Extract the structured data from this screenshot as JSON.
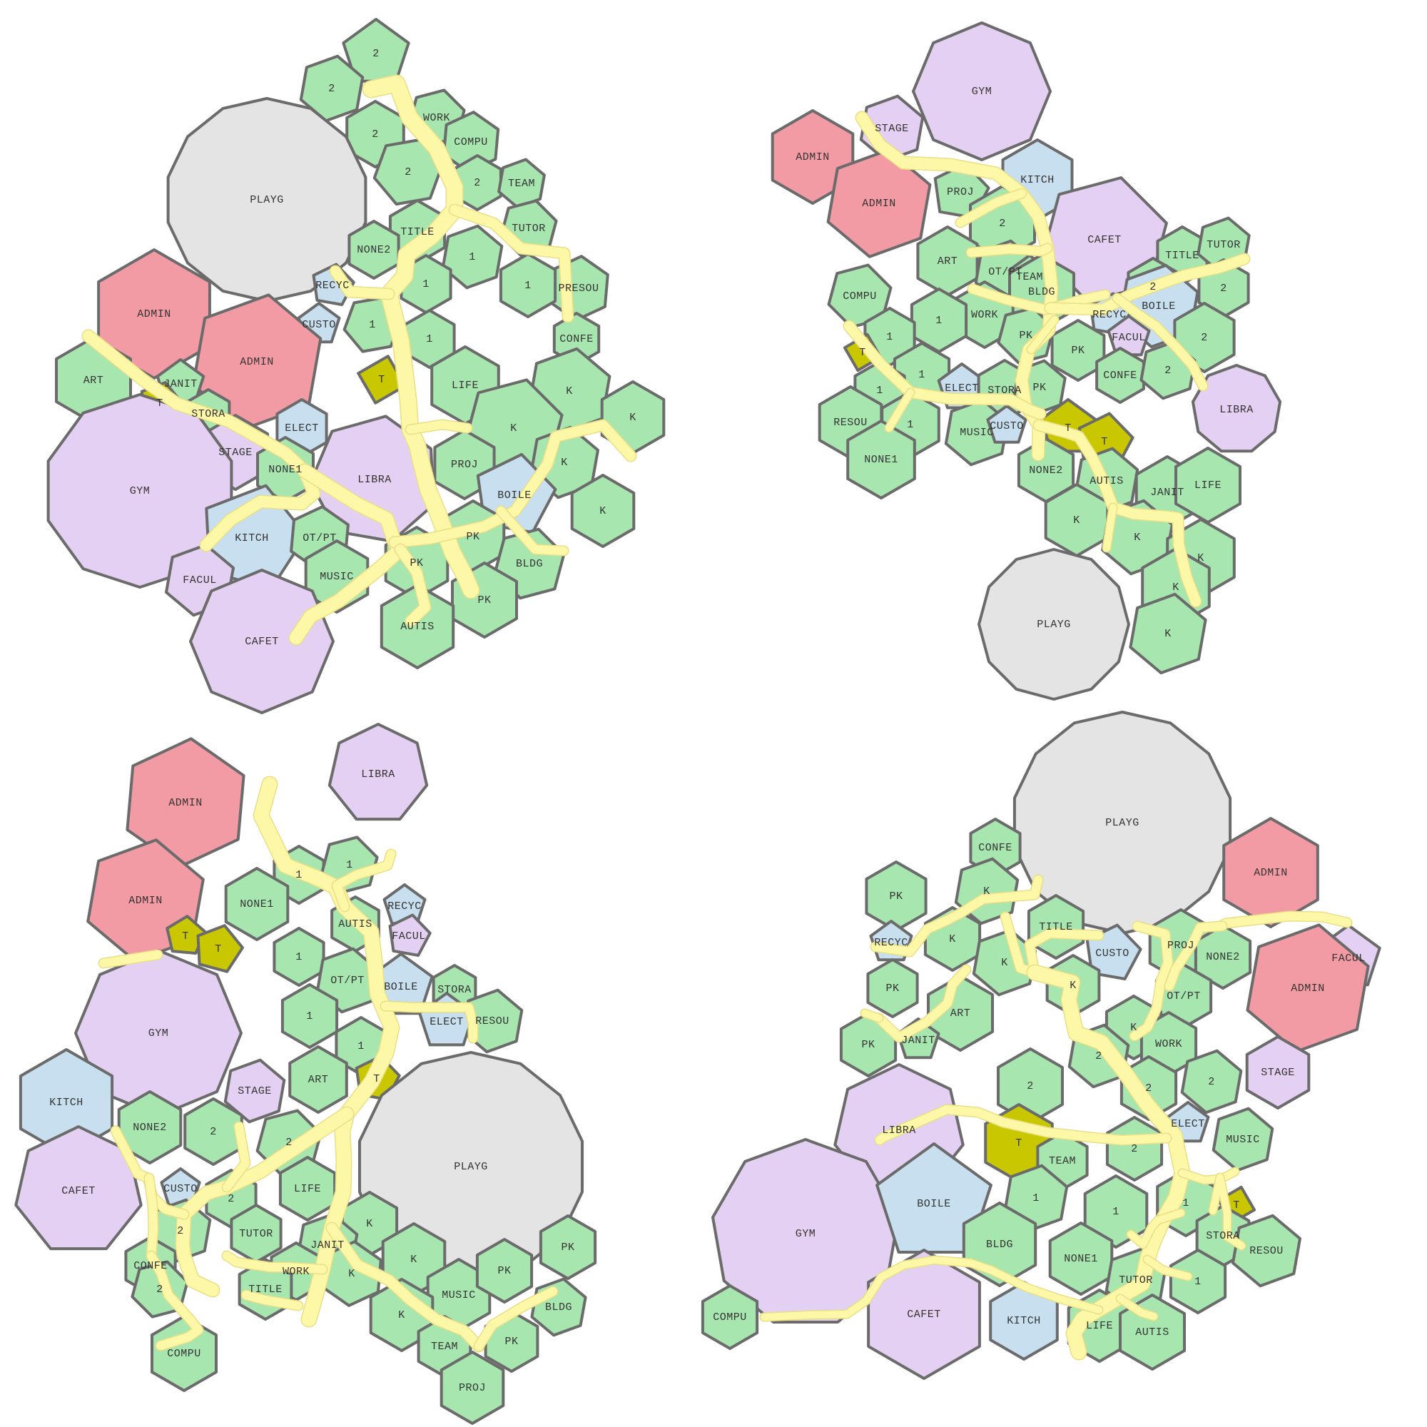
{
  "colors": {
    "classroom": "#a8e6b0",
    "admin": "#f39ba4",
    "large": "#e4d0f2",
    "service": "#c7dfee",
    "toilet": "#c9c800",
    "playground": "#e4e4e4",
    "corridor": "#fdf7a8",
    "wall": "#6b6b6b"
  },
  "plans": [
    {
      "rooms": [
        {
          "label": "2",
          "kind": "classroom"
        },
        {
          "label": "2",
          "kind": "classroom"
        },
        {
          "label": "2",
          "kind": "classroom"
        },
        {
          "label": "WORK",
          "kind": "classroom"
        },
        {
          "label": "COMPU",
          "kind": "classroom"
        },
        {
          "label": "2",
          "kind": "classroom"
        },
        {
          "label": "PLAYG",
          "kind": "playground"
        },
        {
          "label": "2",
          "kind": "classroom"
        },
        {
          "label": "TEAM",
          "kind": "classroom"
        },
        {
          "label": "TITLE",
          "kind": "classroom"
        },
        {
          "label": "TUTOR",
          "kind": "classroom"
        },
        {
          "label": "NONE2",
          "kind": "classroom"
        },
        {
          "label": "1",
          "kind": "classroom"
        },
        {
          "label": "1",
          "kind": "classroom"
        },
        {
          "label": "PRESOU",
          "kind": "classroom"
        },
        {
          "label": "RECYC",
          "kind": "service"
        },
        {
          "label": "ADMIN",
          "kind": "admin"
        },
        {
          "label": "1",
          "kind": "classroom"
        },
        {
          "label": "CUSTO",
          "kind": "service"
        },
        {
          "label": "1",
          "kind": "classroom"
        },
        {
          "label": "CONFE",
          "kind": "classroom"
        },
        {
          "label": "ADMIN",
          "kind": "admin"
        },
        {
          "label": "1",
          "kind": "classroom"
        },
        {
          "label": "ART",
          "kind": "classroom"
        },
        {
          "label": "JANIT",
          "kind": "classroom"
        },
        {
          "label": "T",
          "kind": "toilet"
        },
        {
          "label": "T",
          "kind": "toilet"
        },
        {
          "label": "LIFE",
          "kind": "classroom"
        },
        {
          "label": "K",
          "kind": "classroom"
        },
        {
          "label": "STORA",
          "kind": "classroom"
        },
        {
          "label": "ELECT",
          "kind": "service"
        },
        {
          "label": "K",
          "kind": "classroom"
        },
        {
          "label": "K",
          "kind": "classroom"
        },
        {
          "label": "STAGE",
          "kind": "large"
        },
        {
          "label": "GYM",
          "kind": "large"
        },
        {
          "label": "NONE1",
          "kind": "classroom"
        },
        {
          "label": "LIBRA",
          "kind": "large"
        },
        {
          "label": "PROJ",
          "kind": "classroom"
        },
        {
          "label": "K",
          "kind": "classroom"
        },
        {
          "label": "BOILE",
          "kind": "service"
        },
        {
          "label": "K",
          "kind": "classroom"
        },
        {
          "label": "KITCH",
          "kind": "service"
        },
        {
          "label": "OT/PT",
          "kind": "classroom"
        },
        {
          "label": "PK",
          "kind": "classroom"
        },
        {
          "label": "FACUL",
          "kind": "large"
        },
        {
          "label": "MUSIC",
          "kind": "classroom"
        },
        {
          "label": "PK",
          "kind": "classroom"
        },
        {
          "label": "BLDG",
          "kind": "classroom"
        },
        {
          "label": "PK",
          "kind": "classroom"
        },
        {
          "label": "AUTIS",
          "kind": "classroom"
        },
        {
          "label": "CAFET",
          "kind": "large"
        }
      ]
    },
    {
      "rooms": [
        {
          "label": "GYM",
          "kind": "large"
        },
        {
          "label": "STAGE",
          "kind": "large"
        },
        {
          "label": "ADMIN",
          "kind": "admin"
        },
        {
          "label": "KITCH",
          "kind": "service"
        },
        {
          "label": "ADMIN",
          "kind": "admin"
        },
        {
          "label": "PROJ",
          "kind": "classroom"
        },
        {
          "label": "2",
          "kind": "classroom"
        },
        {
          "label": "CAFET",
          "kind": "large"
        },
        {
          "label": "TITLE",
          "kind": "classroom"
        },
        {
          "label": "TUTOR",
          "kind": "classroom"
        },
        {
          "label": "ART",
          "kind": "classroom"
        },
        {
          "label": "OT/PT",
          "kind": "classroom"
        },
        {
          "label": "TEAM",
          "kind": "classroom"
        },
        {
          "label": "2",
          "kind": "classroom"
        },
        {
          "label": "2",
          "kind": "classroom"
        },
        {
          "label": "COMPU",
          "kind": "classroom"
        },
        {
          "label": "BLDG",
          "kind": "classroom"
        },
        {
          "label": "BOILE",
          "kind": "service"
        },
        {
          "label": "WORK",
          "kind": "classroom"
        },
        {
          "label": "1",
          "kind": "classroom"
        },
        {
          "label": "RECYC",
          "kind": "service"
        },
        {
          "label": "1",
          "kind": "classroom"
        },
        {
          "label": "PK",
          "kind": "classroom"
        },
        {
          "label": "FACUL",
          "kind": "large"
        },
        {
          "label": "2",
          "kind": "classroom"
        },
        {
          "label": "T",
          "kind": "toilet"
        },
        {
          "label": "PK",
          "kind": "classroom"
        },
        {
          "label": "1",
          "kind": "classroom"
        },
        {
          "label": "CONFE",
          "kind": "classroom"
        },
        {
          "label": "2",
          "kind": "classroom"
        },
        {
          "label": "ELECT",
          "kind": "service"
        },
        {
          "label": "STORA",
          "kind": "classroom"
        },
        {
          "label": "PK",
          "kind": "classroom"
        },
        {
          "label": "LIBRA",
          "kind": "large"
        },
        {
          "label": "1",
          "kind": "classroom"
        },
        {
          "label": "RESOU",
          "kind": "classroom"
        },
        {
          "label": "1",
          "kind": "classroom"
        },
        {
          "label": "MUSIC",
          "kind": "classroom"
        },
        {
          "label": "CUSTO",
          "kind": "service"
        },
        {
          "label": "T",
          "kind": "toilet"
        },
        {
          "label": "T",
          "kind": "toilet"
        },
        {
          "label": "NONE1",
          "kind": "classroom"
        },
        {
          "label": "NONE2",
          "kind": "classroom"
        },
        {
          "label": "AUTIS",
          "kind": "classroom"
        },
        {
          "label": "JANIT",
          "kind": "classroom"
        },
        {
          "label": "LIFE",
          "kind": "classroom"
        },
        {
          "label": "K",
          "kind": "classroom"
        },
        {
          "label": "K",
          "kind": "classroom"
        },
        {
          "label": "K",
          "kind": "classroom"
        },
        {
          "label": "K",
          "kind": "classroom"
        },
        {
          "label": "PLAYG",
          "kind": "playground"
        },
        {
          "label": "K",
          "kind": "classroom"
        }
      ]
    },
    {
      "rooms": [
        {
          "label": "LIBRA",
          "kind": "large"
        },
        {
          "label": "ADMIN",
          "kind": "admin"
        },
        {
          "label": "1",
          "kind": "classroom"
        },
        {
          "label": "1",
          "kind": "classroom"
        },
        {
          "label": "NONE1",
          "kind": "classroom"
        },
        {
          "label": "ADMIN",
          "kind": "admin"
        },
        {
          "label": "RECYC",
          "kind": "service"
        },
        {
          "label": "AUTIS",
          "kind": "classroom"
        },
        {
          "label": "T",
          "kind": "toilet"
        },
        {
          "label": "T",
          "kind": "toilet"
        },
        {
          "label": "FACUL",
          "kind": "large"
        },
        {
          "label": "1",
          "kind": "classroom"
        },
        {
          "label": "OT/PT",
          "kind": "classroom"
        },
        {
          "label": "BOILE",
          "kind": "service"
        },
        {
          "label": "STORA",
          "kind": "classroom"
        },
        {
          "label": "1",
          "kind": "classroom"
        },
        {
          "label": "RESOU",
          "kind": "classroom"
        },
        {
          "label": "GYM",
          "kind": "large"
        },
        {
          "label": "ELECT",
          "kind": "service"
        },
        {
          "label": "1",
          "kind": "classroom"
        },
        {
          "label": "T",
          "kind": "toilet"
        },
        {
          "label": "ART",
          "kind": "classroom"
        },
        {
          "label": "KITCH",
          "kind": "service"
        },
        {
          "label": "STAGE",
          "kind": "large"
        },
        {
          "label": "PLAYG",
          "kind": "playground"
        },
        {
          "label": "NONE2",
          "kind": "classroom"
        },
        {
          "label": "2",
          "kind": "classroom"
        },
        {
          "label": "2",
          "kind": "classroom"
        },
        {
          "label": "CAFET",
          "kind": "large"
        },
        {
          "label": "CUSTO",
          "kind": "service"
        },
        {
          "label": "2",
          "kind": "classroom"
        },
        {
          "label": "LIFE",
          "kind": "classroom"
        },
        {
          "label": "K",
          "kind": "classroom"
        },
        {
          "label": "2",
          "kind": "classroom"
        },
        {
          "label": "TUTOR",
          "kind": "classroom"
        },
        {
          "label": "JANIT",
          "kind": "classroom"
        },
        {
          "label": "K",
          "kind": "classroom"
        },
        {
          "label": "PK",
          "kind": "classroom"
        },
        {
          "label": "CONFE",
          "kind": "classroom"
        },
        {
          "label": "WORK",
          "kind": "classroom"
        },
        {
          "label": "K",
          "kind": "classroom"
        },
        {
          "label": "MUSIC",
          "kind": "classroom"
        },
        {
          "label": "PK",
          "kind": "classroom"
        },
        {
          "label": "2",
          "kind": "classroom"
        },
        {
          "label": "TITLE",
          "kind": "classroom"
        },
        {
          "label": "K",
          "kind": "classroom"
        },
        {
          "label": "BLDG",
          "kind": "classroom"
        },
        {
          "label": "PK",
          "kind": "classroom"
        },
        {
          "label": "TEAM",
          "kind": "classroom"
        },
        {
          "label": "COMPU",
          "kind": "classroom"
        },
        {
          "label": "PROJ",
          "kind": "classroom"
        }
      ]
    },
    {
      "rooms": [
        {
          "label": "PLAYG",
          "kind": "playground"
        },
        {
          "label": "CONFE",
          "kind": "classroom"
        },
        {
          "label": "ADMIN",
          "kind": "admin"
        },
        {
          "label": "PK",
          "kind": "classroom"
        },
        {
          "label": "K",
          "kind": "classroom"
        },
        {
          "label": "TITLE",
          "kind": "classroom"
        },
        {
          "label": "CUSTO",
          "kind": "service"
        },
        {
          "label": "PROJ",
          "kind": "classroom"
        },
        {
          "label": "RECYC",
          "kind": "service"
        },
        {
          "label": "K",
          "kind": "classroom"
        },
        {
          "label": "FACUL",
          "kind": "large"
        },
        {
          "label": "K",
          "kind": "classroom"
        },
        {
          "label": "NONE2",
          "kind": "classroom"
        },
        {
          "label": "PK",
          "kind": "classroom"
        },
        {
          "label": "K",
          "kind": "classroom"
        },
        {
          "label": "ADMIN",
          "kind": "admin"
        },
        {
          "label": "OT/PT",
          "kind": "classroom"
        },
        {
          "label": "ART",
          "kind": "classroom"
        },
        {
          "label": "K",
          "kind": "classroom"
        },
        {
          "label": "PK",
          "kind": "classroom"
        },
        {
          "label": "JANIT",
          "kind": "classroom"
        },
        {
          "label": "WORK",
          "kind": "classroom"
        },
        {
          "label": "2",
          "kind": "classroom"
        },
        {
          "label": "2",
          "kind": "classroom"
        },
        {
          "label": "STAGE",
          "kind": "large"
        },
        {
          "label": "2",
          "kind": "classroom"
        },
        {
          "label": "2",
          "kind": "classroom"
        },
        {
          "label": "ELECT",
          "kind": "service"
        },
        {
          "label": "LIBRA",
          "kind": "large"
        },
        {
          "label": "T",
          "kind": "toilet"
        },
        {
          "label": "MUSIC",
          "kind": "classroom"
        },
        {
          "label": "2",
          "kind": "classroom"
        },
        {
          "label": "TEAM",
          "kind": "classroom"
        },
        {
          "label": "GYM",
          "kind": "large"
        },
        {
          "label": "BOILE",
          "kind": "service"
        },
        {
          "label": "1",
          "kind": "classroom"
        },
        {
          "label": "1",
          "kind": "classroom"
        },
        {
          "label": "1",
          "kind": "classroom"
        },
        {
          "label": "T",
          "kind": "toilet"
        },
        {
          "label": "STORA",
          "kind": "classroom"
        },
        {
          "label": "BLDG",
          "kind": "classroom"
        },
        {
          "label": "NONE1",
          "kind": "classroom"
        },
        {
          "label": "RESOU",
          "kind": "classroom"
        },
        {
          "label": "1",
          "kind": "classroom"
        },
        {
          "label": "TUTOR",
          "kind": "classroom"
        },
        {
          "label": "COMPU",
          "kind": "classroom"
        },
        {
          "label": "CAFET",
          "kind": "large"
        },
        {
          "label": "KITCH",
          "kind": "service"
        },
        {
          "label": "LIFE",
          "kind": "classroom"
        },
        {
          "label": "AUTIS",
          "kind": "classroom"
        }
      ]
    }
  ]
}
